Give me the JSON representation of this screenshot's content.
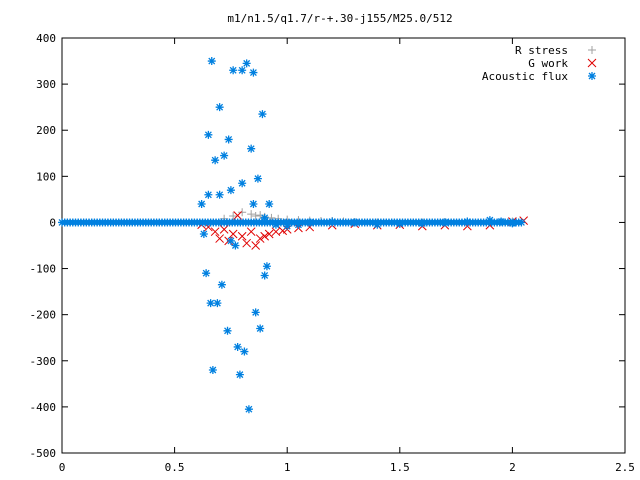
{
  "chart_data": {
    "type": "scatter",
    "title": "m1/n1.5/q1.7/r-+.30-j155/M25.0/512",
    "xlabel": "",
    "ylabel": "",
    "xlim": [
      0,
      2.5
    ],
    "ylim": [
      -500,
      400
    ],
    "x_ticks": [
      "0",
      "0.5",
      "1",
      "1.5",
      "2",
      "2.5"
    ],
    "y_ticks": [
      "400",
      "300",
      "200",
      "100",
      "0",
      "-100",
      "-200",
      "-300",
      "-400",
      "-500"
    ],
    "grid": false,
    "legend_position": "top-right",
    "series": [
      {
        "name": "R stress",
        "marker": "plus",
        "color": "#a0a0a0",
        "points": [
          [
            0.72,
            8
          ],
          [
            0.76,
            14
          ],
          [
            0.8,
            22
          ],
          [
            0.84,
            18
          ],
          [
            0.86,
            14
          ],
          [
            0.88,
            16
          ],
          [
            0.9,
            12
          ],
          [
            0.93,
            10
          ],
          [
            0.96,
            8
          ],
          [
            1.0,
            6
          ],
          [
            1.05,
            5
          ],
          [
            1.1,
            4
          ],
          [
            1.15,
            3
          ],
          [
            1.2,
            3
          ],
          [
            1.25,
            2
          ],
          [
            1.3,
            1
          ],
          [
            1.4,
            0
          ],
          [
            1.5,
            -1
          ],
          [
            1.6,
            0
          ],
          [
            1.7,
            1
          ],
          [
            1.8,
            2
          ],
          [
            1.9,
            3
          ],
          [
            2.0,
            2
          ]
        ]
      },
      {
        "name": "G work",
        "marker": "cross",
        "color": "#e00000",
        "points": [
          [
            0.62,
            -5
          ],
          [
            0.65,
            -10
          ],
          [
            0.68,
            -20
          ],
          [
            0.7,
            -35
          ],
          [
            0.72,
            -15
          ],
          [
            0.74,
            -40
          ],
          [
            0.76,
            -25
          ],
          [
            0.78,
            15
          ],
          [
            0.8,
            -30
          ],
          [
            0.82,
            -45
          ],
          [
            0.84,
            -20
          ],
          [
            0.86,
            -50
          ],
          [
            0.88,
            -35
          ],
          [
            0.9,
            -30
          ],
          [
            0.92,
            -25
          ],
          [
            0.95,
            -20
          ],
          [
            0.98,
            -18
          ],
          [
            1.0,
            -15
          ],
          [
            1.05,
            -12
          ],
          [
            1.1,
            -10
          ],
          [
            1.2,
            -6
          ],
          [
            1.3,
            -3
          ],
          [
            1.4,
            -6
          ],
          [
            1.5,
            -5
          ],
          [
            1.6,
            -8
          ],
          [
            1.7,
            -6
          ],
          [
            1.8,
            -8
          ],
          [
            1.9,
            -6
          ],
          [
            2.0,
            2
          ],
          [
            2.05,
            4
          ]
        ]
      },
      {
        "name": "Acoustic flux",
        "marker": "star",
        "color": "#0080e0",
        "points": [
          [
            0.62,
            40
          ],
          [
            0.63,
            -25
          ],
          [
            0.64,
            -110
          ],
          [
            0.65,
            190
          ],
          [
            0.66,
            -175
          ],
          [
            0.665,
            350
          ],
          [
            0.67,
            -320
          ],
          [
            0.68,
            135
          ],
          [
            0.69,
            -175
          ],
          [
            0.7,
            250
          ],
          [
            0.71,
            -135
          ],
          [
            0.72,
            145
          ],
          [
            0.735,
            -235
          ],
          [
            0.74,
            180
          ],
          [
            0.75,
            70
          ],
          [
            0.76,
            330
          ],
          [
            0.77,
            -50
          ],
          [
            0.78,
            -270
          ],
          [
            0.79,
            -330
          ],
          [
            0.8,
            330
          ],
          [
            0.81,
            -280
          ],
          [
            0.82,
            345
          ],
          [
            0.83,
            -405
          ],
          [
            0.84,
            160
          ],
          [
            0.85,
            325
          ],
          [
            0.86,
            -195
          ],
          [
            0.87,
            95
          ],
          [
            0.88,
            -230
          ],
          [
            0.89,
            235
          ],
          [
            0.9,
            -115
          ],
          [
            0.91,
            -95
          ],
          [
            0.92,
            40
          ],
          [
            0.65,
            60
          ],
          [
            0.7,
            60
          ],
          [
            0.75,
            -40
          ],
          [
            0.8,
            85
          ],
          [
            0.85,
            40
          ],
          [
            0.9,
            10
          ],
          [
            0.95,
            -5
          ],
          [
            1.0,
            -8
          ],
          [
            1.05,
            -5
          ],
          [
            1.1,
            0
          ],
          [
            1.2,
            2
          ],
          [
            1.3,
            0
          ],
          [
            1.4,
            -5
          ],
          [
            1.5,
            -3
          ],
          [
            1.6,
            -2
          ],
          [
            1.7,
            0
          ],
          [
            1.8,
            2
          ],
          [
            1.9,
            5
          ],
          [
            1.95,
            2
          ],
          [
            2.0,
            -2
          ]
        ]
      }
    ]
  }
}
